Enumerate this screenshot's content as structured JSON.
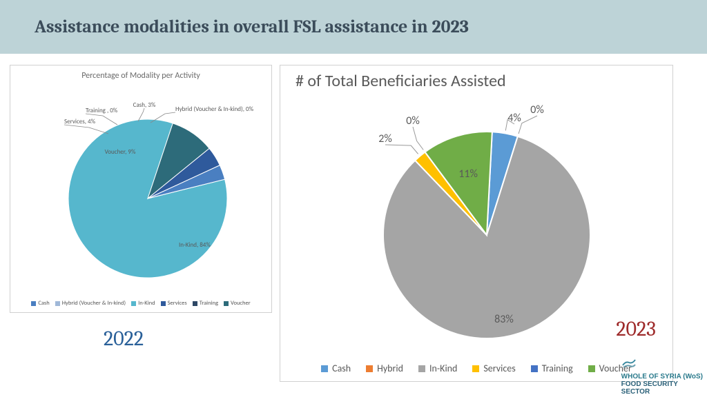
{
  "title": "Assistance modalities in overall FSL assistance in 2023",
  "chart_2022": {
    "type": "pie",
    "title": "Percentage of Modality per Activity",
    "year_label": "2022",
    "year_label_color": "#2a6099",
    "year_label_fontsize": 30,
    "label_fontsize": 9,
    "background_color": "#ffffff",
    "border_color": "#d0d0d0",
    "slices": [
      {
        "key": "in_kind",
        "label": "In-Kind, 84%",
        "value": 84,
        "color": "#56b7cd"
      },
      {
        "key": "voucher",
        "label": "Voucher, 9%",
        "value": 9,
        "color": "#2d6b7a"
      },
      {
        "key": "services",
        "label": "Services, 4%",
        "value": 4,
        "color": "#2f5a9c"
      },
      {
        "key": "training",
        "label": "Training , 0%",
        "value": 0,
        "color": "#2e4765"
      },
      {
        "key": "cash",
        "label": "Cash, 3%",
        "value": 3,
        "color": "#4a7fc1"
      },
      {
        "key": "hybrid",
        "label": "Hybrid (Voucher & In-kind), 0%",
        "value": 0,
        "color": "#a0b8d8"
      }
    ],
    "legend": [
      {
        "label": "Cash",
        "color": "#4a7fc1"
      },
      {
        "label": "Hybrid (Voucher & In-kind)",
        "color": "#a0b8d8"
      },
      {
        "label": "In-Kind",
        "color": "#56b7cd"
      },
      {
        "label": "Services",
        "color": "#2f5a9c"
      },
      {
        "label": "Training",
        "color": "#2e4765"
      },
      {
        "label": "Voucher",
        "color": "#2d6b7a"
      }
    ]
  },
  "chart_2023": {
    "type": "pie",
    "title": "# of Total Beneficiaries Assisted",
    "year_label": "2023",
    "year_label_color": "#9e2b2b",
    "year_label_fontsize": 30,
    "label_fontsize": 16,
    "background_color": "#ffffff",
    "border_color": "#d0d0d0",
    "slices": [
      {
        "key": "cash",
        "label": "4%",
        "value": 4,
        "color": "#5b9bd5"
      },
      {
        "key": "hybrid",
        "label": "0%",
        "value": 0,
        "color": "#ed7d31"
      },
      {
        "key": "in_kind",
        "label": "83%",
        "value": 83,
        "color": "#a5a5a5"
      },
      {
        "key": "services",
        "label": "2%",
        "value": 2,
        "color": "#ffc000"
      },
      {
        "key": "training",
        "label": "0%",
        "value": 0,
        "color": "#4472c4"
      },
      {
        "key": "voucher",
        "label": "11%",
        "value": 11,
        "color": "#70ad47"
      }
    ],
    "legend": [
      {
        "label": "Cash",
        "color": "#5b9bd5"
      },
      {
        "label": "Hybrid",
        "color": "#ed7d31"
      },
      {
        "label": "In-Kind",
        "color": "#a5a5a5"
      },
      {
        "label": "Services",
        "color": "#ffc000"
      },
      {
        "label": "Training",
        "color": "#4472c4"
      },
      {
        "label": "Voucher",
        "color": "#70ad47"
      }
    ]
  },
  "footer": {
    "line1": "WHOLE OF SYRIA (WoS)",
    "line2": "FOOD SECURITY",
    "line3": "SECTOR",
    "text_color": "#2a7a8c"
  }
}
